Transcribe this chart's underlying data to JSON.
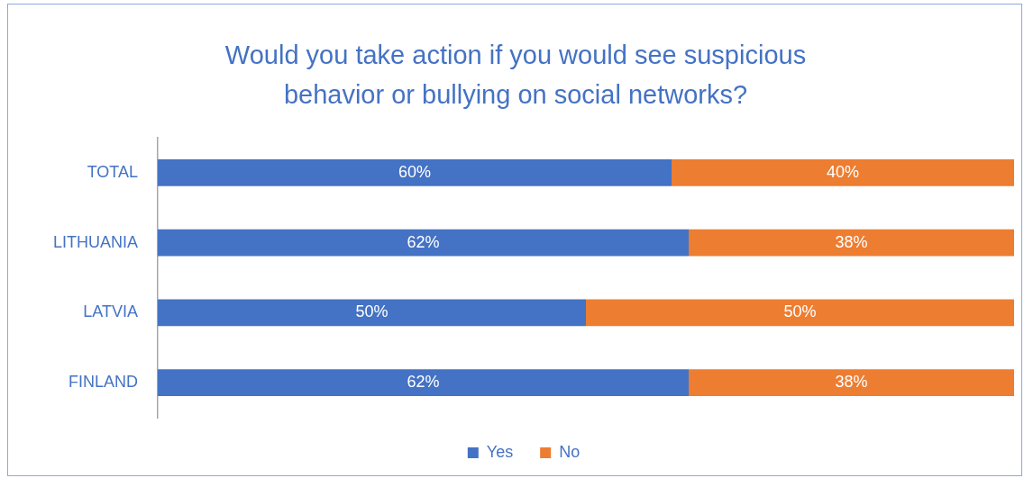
{
  "chart_data": {
    "type": "bar",
    "orientation": "horizontal",
    "stacked": true,
    "title": "Would you take action if you would see suspicious behavior or bullying on social networks?",
    "categories": [
      "TOTAL",
      "LITHUANIA",
      "LATVIA",
      "FINLAND"
    ],
    "series": [
      {
        "name": "Yes",
        "color": "#4472c4",
        "values": [
          60,
          62,
          50,
          62
        ],
        "value_labels": [
          "60%",
          "62%",
          "50%",
          "62%"
        ]
      },
      {
        "name": "No",
        "color": "#ed7d31",
        "values": [
          40,
          38,
          50,
          38
        ],
        "value_labels": [
          "40%",
          "38%",
          "50%",
          "38%"
        ]
      }
    ],
    "xlim": [
      0,
      100
    ],
    "tick_labels": "y",
    "legend": "bottom"
  }
}
